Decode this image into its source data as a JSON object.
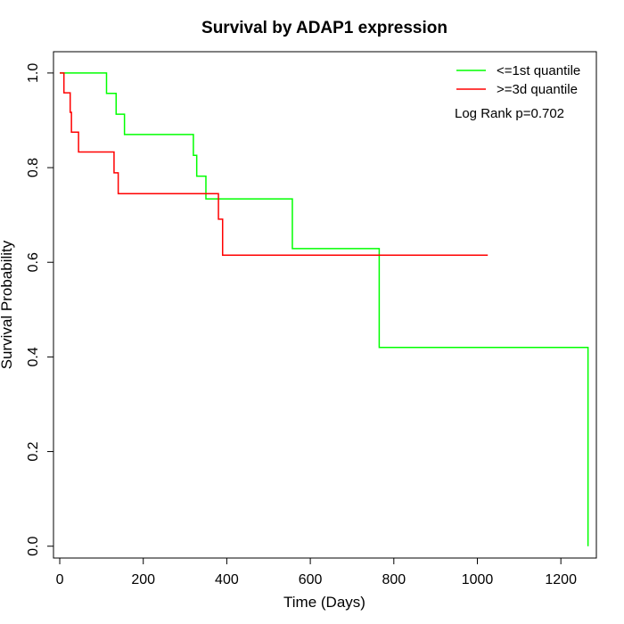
{
  "chart_data": {
    "type": "line",
    "title": "Survival by ADAP1 expression",
    "xlabel": "Time (Days)",
    "ylabel": "Survival Probability",
    "xlim": [
      -15,
      1285
    ],
    "ylim": [
      -0.025,
      1.045
    ],
    "x_ticks": [
      0,
      200,
      400,
      600,
      800,
      1000,
      1200
    ],
    "x_tick_labels": [
      "0",
      "200",
      "400",
      "600",
      "800",
      "1000",
      "1200"
    ],
    "y_ticks": [
      0,
      0.2,
      0.4,
      0.6,
      0.8,
      1.0
    ],
    "y_tick_labels": [
      "0.0",
      "0.2",
      "0.4",
      "0.6",
      "0.8",
      "1.0"
    ],
    "grid": false,
    "legend_position": "top-right",
    "annotation": "Log Rank p=0.702",
    "series": [
      {
        "name": "<=1st quantile",
        "color": "#00ff00",
        "step": true,
        "x": [
          0,
          112,
          135,
          155,
          320,
          328,
          350,
          557,
          765,
          1265,
          1265
        ],
        "y": [
          1.0,
          0.957,
          0.913,
          0.87,
          0.826,
          0.782,
          0.734,
          0.629,
          0.42,
          0.42,
          0.0
        ]
      },
      {
        "name": ">=3d quantile",
        "color": "#ff0000",
        "step": true,
        "x": [
          0,
          10,
          25,
          28,
          45,
          130,
          140,
          380,
          390,
          1025
        ],
        "y": [
          1.0,
          0.958,
          0.917,
          0.875,
          0.833,
          0.789,
          0.745,
          0.691,
          0.615,
          0.615
        ]
      }
    ]
  }
}
